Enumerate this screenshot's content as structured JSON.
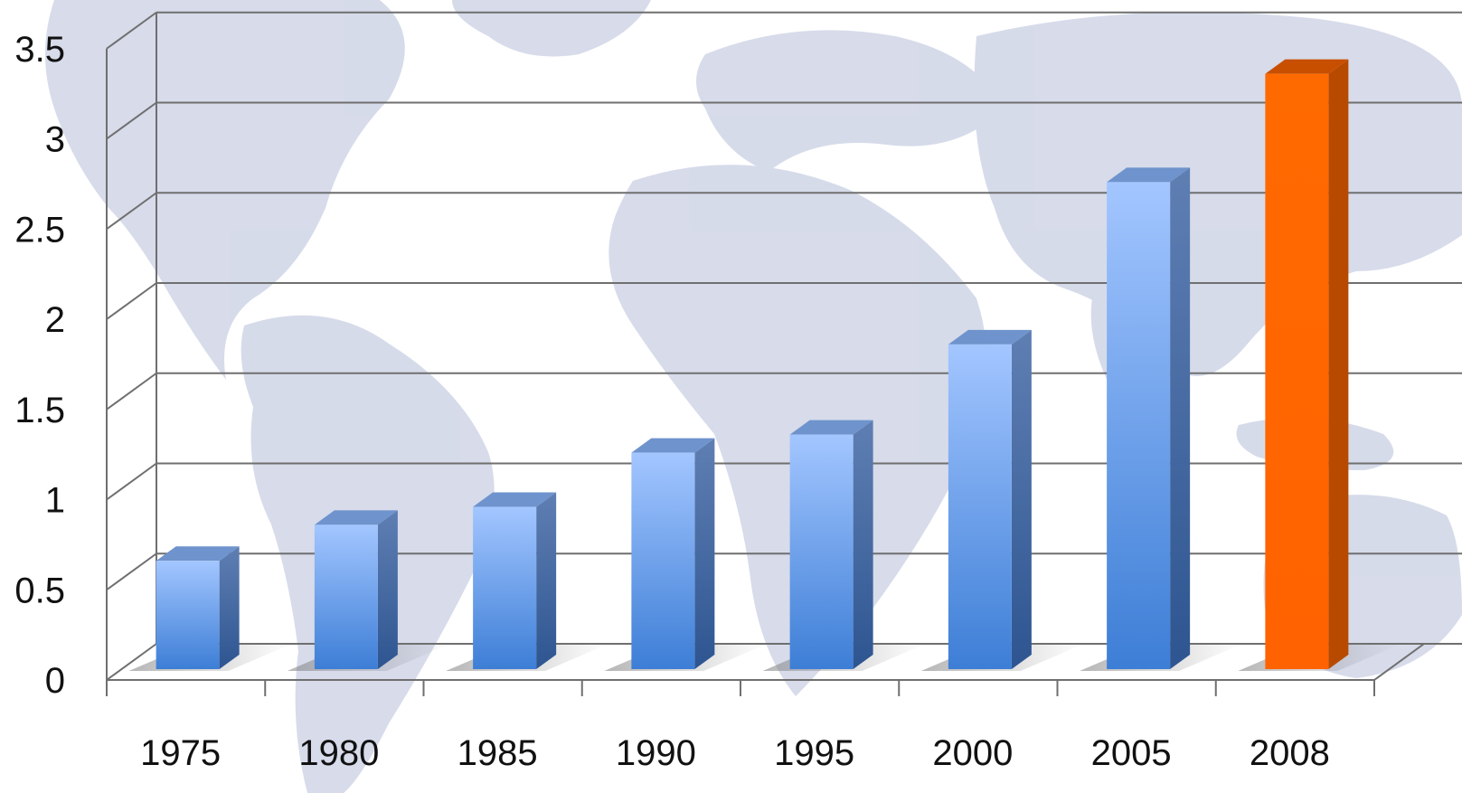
{
  "chart_data": {
    "type": "bar",
    "categories": [
      "1975",
      "1980",
      "1985",
      "1990",
      "1995",
      "2000",
      "2005",
      "2008"
    ],
    "values": [
      0.6,
      0.8,
      0.9,
      1.2,
      1.3,
      1.8,
      2.7,
      3.3
    ],
    "highlight_index": 7,
    "ylim": [
      0,
      3.5
    ],
    "yticks": [
      "0",
      "0.5",
      "1",
      "1.5",
      "2",
      "2.5",
      "3",
      "3.5"
    ],
    "ytick_values": [
      0,
      0.5,
      1,
      1.5,
      2,
      2.5,
      3,
      3.5
    ],
    "grid": true,
    "style": "3d-column",
    "colors": {
      "bar": "#5b8fd8",
      "bar_light": "#9ec0fa",
      "bar_dark": "#3a6bb0",
      "highlight": "#ff6600",
      "highlight_dark": "#b84a00",
      "gridline": "#6f6f6f",
      "background_map": "#c9cfe3"
    }
  }
}
